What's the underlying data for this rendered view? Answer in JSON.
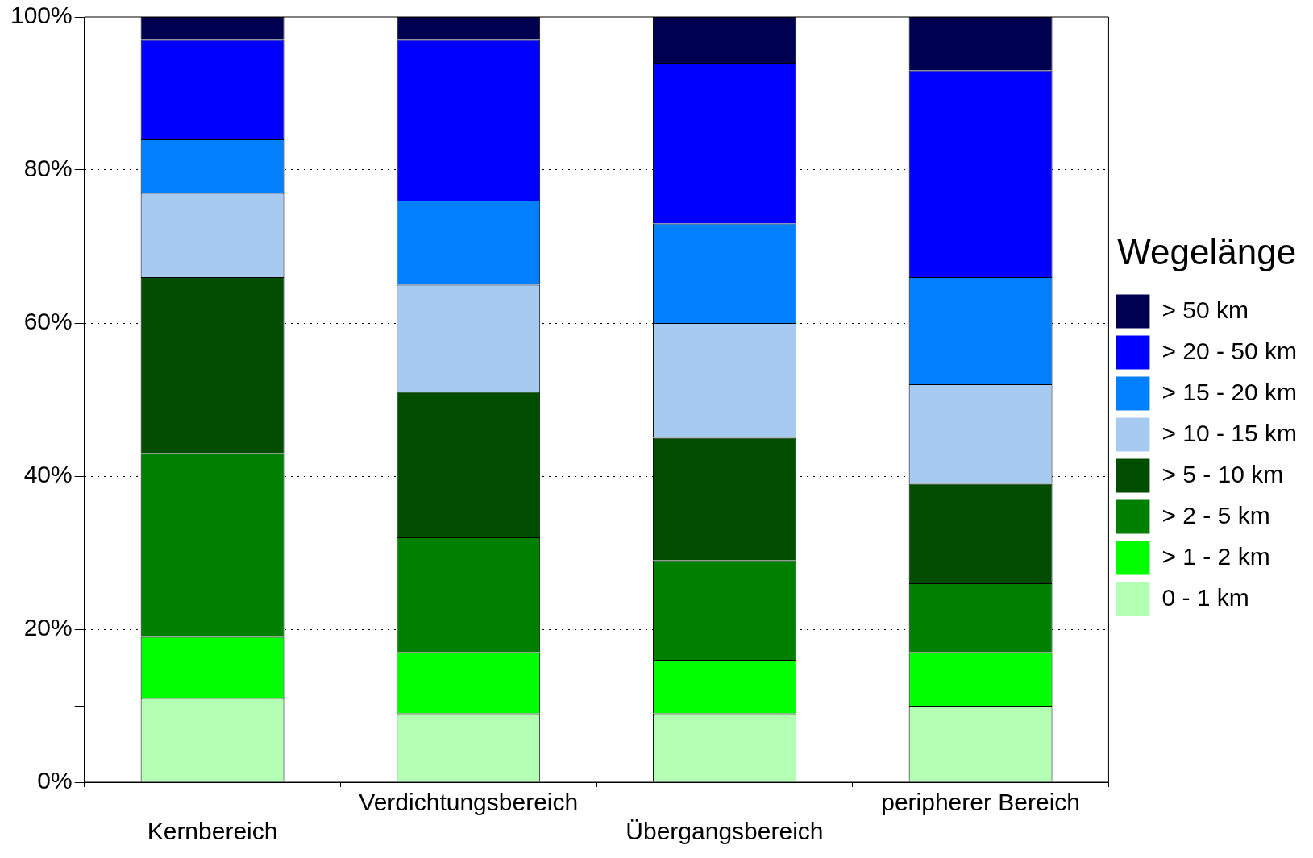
{
  "chart_data": {
    "type": "bar",
    "stacked": true,
    "legend_title": "Wegelänge",
    "legend": "right",
    "grid": "y",
    "categories": [
      "Kernbereich",
      "Verdichtungsbereich",
      "Übergangsbereich",
      "peripherer Bereich"
    ],
    "series": [
      {
        "name": "0 - 1 km",
        "color": "#b3ffb3",
        "values": [
          11,
          9,
          9,
          10
        ]
      },
      {
        "name": "> 1 - 2 km",
        "color": "#00ff00",
        "values": [
          8,
          8,
          7,
          7
        ]
      },
      {
        "name": "> 2 - 5 km",
        "color": "#008000",
        "values": [
          24,
          15,
          13,
          9
        ]
      },
      {
        "name": "> 5 - 10 km",
        "color": "#004d00",
        "values": [
          23,
          19,
          16,
          13
        ]
      },
      {
        "name": "> 10 - 15 km",
        "color": "#a6caf0",
        "values": [
          11,
          14,
          15,
          13
        ]
      },
      {
        "name": "> 15 - 20 km",
        "color": "#0080ff",
        "values": [
          7,
          11,
          13,
          14
        ]
      },
      {
        "name": "> 20 - 50 km",
        "color": "#0000ff",
        "values": [
          13,
          21,
          21,
          27
        ]
      },
      {
        "name": "> 50 km",
        "color": "#000050",
        "values": [
          3,
          3,
          6,
          7
        ]
      }
    ],
    "ylim": [
      0,
      100
    ],
    "yticks": [
      {
        "value": 0,
        "label": "0%"
      },
      {
        "value": 10,
        "label": null
      },
      {
        "value": 20,
        "label": "20%"
      },
      {
        "value": 30,
        "label": null
      },
      {
        "value": 40,
        "label": "40%"
      },
      {
        "value": 50,
        "label": null
      },
      {
        "value": 60,
        "label": "60%"
      },
      {
        "value": 70,
        "label": null
      },
      {
        "value": 80,
        "label": "80%"
      },
      {
        "value": 90,
        "label": null
      },
      {
        "value": 100,
        "label": "100%"
      }
    ]
  }
}
